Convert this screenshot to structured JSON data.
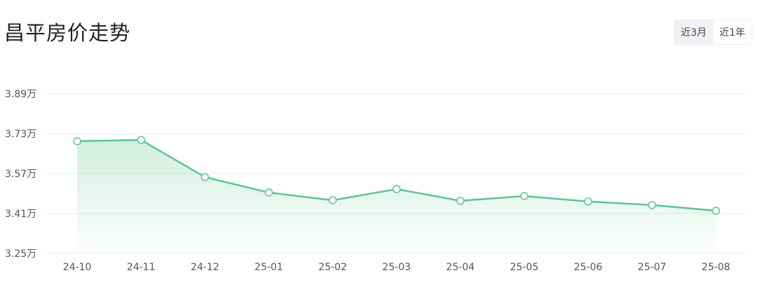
{
  "header": {
    "title": "昌平房价走势"
  },
  "range_tabs": [
    {
      "label": "近3月",
      "active": true
    },
    {
      "label": "近1年",
      "active": false
    }
  ],
  "colors": {
    "line": "#5cc592",
    "fill": "#5cc592",
    "grid": "#ebebeb"
  },
  "chart_data": {
    "type": "area",
    "title": "昌平房价走势",
    "categories": [
      "24-10",
      "24-11",
      "24-12",
      "25-01",
      "25-02",
      "25-03",
      "25-04",
      "25-05",
      "25-06",
      "25-07",
      "25-08"
    ],
    "values": [
      3.7,
      3.705,
      3.556,
      3.494,
      3.463,
      3.508,
      3.461,
      3.48,
      3.458,
      3.444,
      3.421
    ],
    "unit": "万",
    "ylim": [
      3.25,
      3.89
    ],
    "yticks": [
      "3.25万",
      "3.41万",
      "3.57万",
      "3.73万",
      "3.89万"
    ],
    "ytick_values": [
      3.25,
      3.41,
      3.57,
      3.73,
      3.89
    ],
    "grid": true,
    "legend": "none"
  }
}
